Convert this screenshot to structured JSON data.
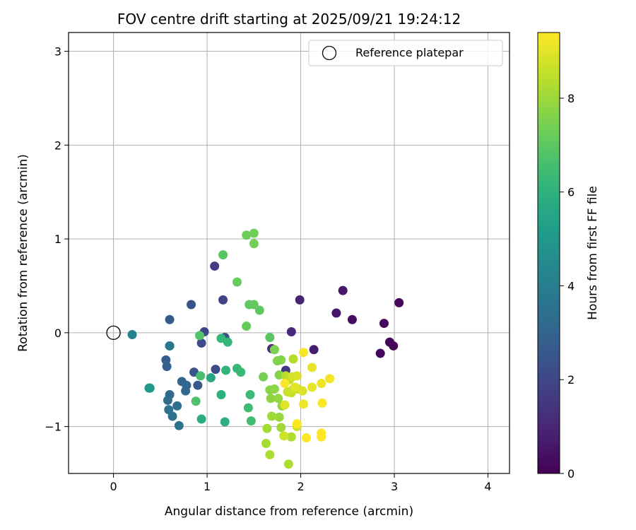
{
  "chart_data": {
    "type": "scatter",
    "title": "FOV centre drift starting at 2025/09/21 19:24:12",
    "xlabel": "Angular distance from reference (arcmin)",
    "ylabel": "Rotation from reference (arcmin)",
    "xlim": [
      -0.48,
      4.23
    ],
    "ylim": [
      -1.5,
      3.2
    ],
    "xticks": [
      0,
      1,
      2,
      3,
      4
    ],
    "yticks": [
      -1,
      0,
      1,
      2,
      3
    ],
    "xtick_labels": [
      "0",
      "1",
      "2",
      "3",
      "4"
    ],
    "ytick_labels": [
      "−1",
      "0",
      "1",
      "2",
      "3"
    ],
    "grid": true,
    "legend": {
      "location": "top-right",
      "entries": [
        {
          "label": "Reference platepar",
          "marker": "open-circle"
        }
      ]
    },
    "reference_point": {
      "x": 0,
      "y": 0
    },
    "colorbar": {
      "label": "Hours from first FF file",
      "colormap": "viridis",
      "range": [
        0,
        9.4
      ],
      "ticks": [
        0,
        2,
        4,
        6,
        8
      ],
      "tick_labels": [
        "0",
        "2",
        "4",
        "6",
        "8"
      ]
    },
    "points": [
      {
        "x": 2.85,
        "y": -0.22,
        "h": 0.15
      },
      {
        "x": 2.95,
        "y": -0.1,
        "h": 0.15
      },
      {
        "x": 2.99,
        "y": -0.14,
        "h": 0.15
      },
      {
        "x": 3.05,
        "y": 0.32,
        "h": 0.2
      },
      {
        "x": 2.89,
        "y": 0.1,
        "h": 0.25
      },
      {
        "x": 2.55,
        "y": 0.14,
        "h": 0.35
      },
      {
        "x": 2.45,
        "y": 0.45,
        "h": 0.55
      },
      {
        "x": 2.38,
        "y": 0.21,
        "h": 0.6
      },
      {
        "x": 2.14,
        "y": -0.18,
        "h": 0.75
      },
      {
        "x": 1.99,
        "y": 0.35,
        "h": 0.9
      },
      {
        "x": 1.9,
        "y": 0.01,
        "h": 1.1
      },
      {
        "x": 1.69,
        "y": -0.17,
        "h": 1.25
      },
      {
        "x": 1.84,
        "y": -0.4,
        "h": 1.5
      },
      {
        "x": 1.08,
        "y": 0.71,
        "h": 1.7
      },
      {
        "x": 1.17,
        "y": 0.35,
        "h": 1.9
      },
      {
        "x": 0.97,
        "y": 0.01,
        "h": 2.0
      },
      {
        "x": 0.94,
        "y": -0.11,
        "h": 2.1
      },
      {
        "x": 1.09,
        "y": -0.39,
        "h": 2.2
      },
      {
        "x": 1.19,
        "y": -0.05,
        "h": 2.3
      },
      {
        "x": 0.83,
        "y": 0.3,
        "h": 2.4
      },
      {
        "x": 0.86,
        "y": -0.42,
        "h": 2.5
      },
      {
        "x": 0.9,
        "y": -0.56,
        "h": 2.6
      },
      {
        "x": 0.6,
        "y": 0.14,
        "h": 2.7
      },
      {
        "x": 0.56,
        "y": -0.29,
        "h": 2.8
      },
      {
        "x": 0.57,
        "y": -0.36,
        "h": 2.9
      },
      {
        "x": 0.73,
        "y": -0.52,
        "h": 3.0
      },
      {
        "x": 0.78,
        "y": -0.56,
        "h": 3.1
      },
      {
        "x": 0.77,
        "y": -0.62,
        "h": 3.15
      },
      {
        "x": 0.6,
        "y": -0.66,
        "h": 3.2
      },
      {
        "x": 0.58,
        "y": -0.72,
        "h": 3.3
      },
      {
        "x": 0.68,
        "y": -0.78,
        "h": 3.4
      },
      {
        "x": 0.59,
        "y": -0.82,
        "h": 3.45
      },
      {
        "x": 0.63,
        "y": -0.89,
        "h": 3.5
      },
      {
        "x": 0.7,
        "y": -0.99,
        "h": 3.6
      },
      {
        "x": 0.6,
        "y": -0.14,
        "h": 3.7
      },
      {
        "x": 0.6,
        "y": -0.14,
        "h": 3.8
      },
      {
        "x": 0.2,
        "y": -0.02,
        "h": 4.2
      },
      {
        "x": 0.39,
        "y": -0.59,
        "h": 5.0
      },
      {
        "x": 0.38,
        "y": -0.59,
        "h": 5.1
      },
      {
        "x": 1.04,
        "y": -0.48,
        "h": 5.6
      },
      {
        "x": 0.94,
        "y": -0.92,
        "h": 5.8
      },
      {
        "x": 1.19,
        "y": -0.95,
        "h": 5.9
      },
      {
        "x": 1.15,
        "y": -0.66,
        "h": 6.0
      },
      {
        "x": 1.2,
        "y": -0.4,
        "h": 6.1
      },
      {
        "x": 1.22,
        "y": -0.1,
        "h": 6.2
      },
      {
        "x": 1.15,
        "y": -0.06,
        "h": 6.25
      },
      {
        "x": 1.32,
        "y": -0.38,
        "h": 6.3
      },
      {
        "x": 1.36,
        "y": -0.42,
        "h": 6.35
      },
      {
        "x": 1.46,
        "y": -0.66,
        "h": 6.4
      },
      {
        "x": 1.44,
        "y": -0.8,
        "h": 6.45
      },
      {
        "x": 1.47,
        "y": -0.94,
        "h": 6.5
      },
      {
        "x": 0.93,
        "y": -0.46,
        "h": 6.6
      },
      {
        "x": 0.88,
        "y": -0.73,
        "h": 6.7
      },
      {
        "x": 0.92,
        "y": -0.03,
        "h": 6.8
      },
      {
        "x": 1.17,
        "y": 0.83,
        "h": 6.9
      },
      {
        "x": 1.67,
        "y": -0.05,
        "h": 6.95
      },
      {
        "x": 1.56,
        "y": 0.24,
        "h": 7.0
      },
      {
        "x": 1.45,
        "y": 0.3,
        "h": 7.05
      },
      {
        "x": 1.5,
        "y": 0.3,
        "h": 7.1
      },
      {
        "x": 1.42,
        "y": 0.07,
        "h": 7.15
      },
      {
        "x": 1.32,
        "y": 0.54,
        "h": 7.2
      },
      {
        "x": 1.42,
        "y": 1.04,
        "h": 7.25
      },
      {
        "x": 1.5,
        "y": 1.06,
        "h": 7.3
      },
      {
        "x": 1.5,
        "y": 0.95,
        "h": 7.35
      },
      {
        "x": 1.6,
        "y": -0.47,
        "h": 7.4
      },
      {
        "x": 1.72,
        "y": -0.18,
        "h": 7.5
      },
      {
        "x": 1.75,
        "y": -0.3,
        "h": 7.55
      },
      {
        "x": 1.79,
        "y": -0.29,
        "h": 7.6
      },
      {
        "x": 1.77,
        "y": -0.45,
        "h": 7.65
      },
      {
        "x": 1.67,
        "y": -0.61,
        "h": 7.7
      },
      {
        "x": 1.72,
        "y": -0.6,
        "h": 7.75
      },
      {
        "x": 1.68,
        "y": -0.7,
        "h": 7.8
      },
      {
        "x": 1.76,
        "y": -0.7,
        "h": 7.85
      },
      {
        "x": 1.8,
        "y": -0.78,
        "h": 7.9
      },
      {
        "x": 1.77,
        "y": -0.9,
        "h": 7.95
      },
      {
        "x": 1.69,
        "y": -0.89,
        "h": 8.0
      },
      {
        "x": 1.79,
        "y": -1.01,
        "h": 8.05
      },
      {
        "x": 1.64,
        "y": -1.02,
        "h": 8.1
      },
      {
        "x": 1.63,
        "y": -1.18,
        "h": 8.15
      },
      {
        "x": 1.67,
        "y": -1.3,
        "h": 8.2
      },
      {
        "x": 1.87,
        "y": -1.4,
        "h": 8.25
      },
      {
        "x": 1.9,
        "y": -1.11,
        "h": 8.3
      },
      {
        "x": 1.92,
        "y": -0.28,
        "h": 8.35
      },
      {
        "x": 1.84,
        "y": -0.46,
        "h": 8.4
      },
      {
        "x": 1.88,
        "y": -0.5,
        "h": 8.45
      },
      {
        "x": 1.92,
        "y": -0.6,
        "h": 8.5
      },
      {
        "x": 1.97,
        "y": -0.6,
        "h": 8.55
      },
      {
        "x": 1.9,
        "y": -0.64,
        "h": 8.6
      },
      {
        "x": 1.86,
        "y": -0.63,
        "h": 8.65
      },
      {
        "x": 1.96,
        "y": -1.0,
        "h": 8.7
      },
      {
        "x": 1.82,
        "y": -1.1,
        "h": 8.75
      },
      {
        "x": 1.91,
        "y": -0.47,
        "h": 8.8
      },
      {
        "x": 1.96,
        "y": -0.46,
        "h": 8.85
      },
      {
        "x": 2.02,
        "y": -0.62,
        "h": 8.9
      },
      {
        "x": 1.83,
        "y": -0.77,
        "h": 8.95
      },
      {
        "x": 1.94,
        "y": -0.58,
        "h": 9.0
      },
      {
        "x": 2.12,
        "y": -0.58,
        "h": 9.05
      },
      {
        "x": 2.12,
        "y": -0.37,
        "h": 9.1
      },
      {
        "x": 2.03,
        "y": -0.76,
        "h": 9.15
      },
      {
        "x": 2.22,
        "y": -0.54,
        "h": 9.2
      },
      {
        "x": 2.31,
        "y": -0.49,
        "h": 9.25
      },
      {
        "x": 2.03,
        "y": -0.21,
        "h": 9.3
      },
      {
        "x": 2.23,
        "y": -0.75,
        "h": 9.35
      },
      {
        "x": 1.83,
        "y": -0.54,
        "h": 9.35
      },
      {
        "x": 1.96,
        "y": -0.97,
        "h": 9.4
      },
      {
        "x": 2.06,
        "y": -1.12,
        "h": 9.4
      },
      {
        "x": 2.22,
        "y": -1.07,
        "h": 9.4
      },
      {
        "x": 2.22,
        "y": -1.11,
        "h": 9.4
      }
    ]
  }
}
